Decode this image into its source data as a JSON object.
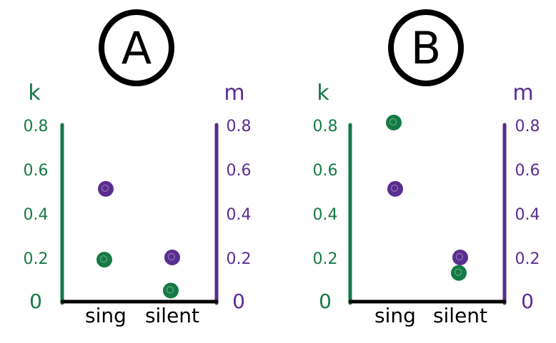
{
  "chart_data": [
    {
      "type": "scatter",
      "title": "A",
      "categories": [
        "sing",
        "silent"
      ],
      "left_axis": {
        "label": "k",
        "ticks": [
          "0",
          "0.2",
          "0.4",
          "0.6",
          "0.8"
        ],
        "ylim": [
          0,
          0.8
        ],
        "color": "#157a45"
      },
      "right_axis": {
        "label": "m",
        "ticks": [
          "0",
          "0.2",
          "0.4",
          "0.6",
          "0.8"
        ],
        "ylim": [
          0,
          0.8
        ],
        "color": "#5a2d91"
      },
      "series": [
        {
          "name": "k",
          "axis": "left",
          "color": "#157a45",
          "values": [
            0.19,
            0.05
          ]
        },
        {
          "name": "m",
          "axis": "right",
          "color": "#5a2d91",
          "values": [
            0.51,
            0.2
          ]
        }
      ]
    },
    {
      "type": "scatter",
      "title": "B",
      "categories": [
        "sing",
        "silent"
      ],
      "left_axis": {
        "label": "k",
        "ticks": [
          "0",
          "0.2",
          "0.4",
          "0.6",
          "0.8"
        ],
        "ylim": [
          0,
          0.8
        ],
        "color": "#157a45"
      },
      "right_axis": {
        "label": "m",
        "ticks": [
          "0",
          "0.2",
          "0.4",
          "0.6",
          "0.8"
        ],
        "ylim": [
          0,
          0.8
        ],
        "color": "#5a2d91"
      },
      "series": [
        {
          "name": "k",
          "axis": "left",
          "color": "#157a45",
          "values": [
            0.81,
            0.13
          ]
        },
        {
          "name": "m",
          "axis": "right",
          "color": "#5a2d91",
          "values": [
            0.51,
            0.2
          ]
        }
      ]
    }
  ]
}
